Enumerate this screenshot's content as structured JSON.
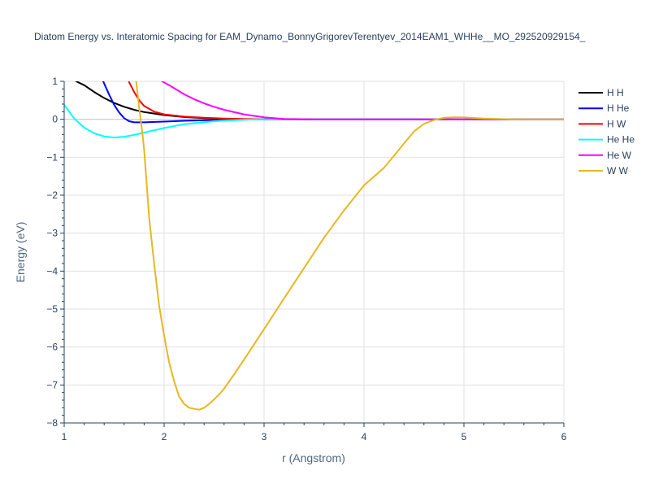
{
  "chart_data": {
    "type": "line",
    "title": "Diatom Energy vs. Interatomic Spacing for EAM_Dynamo_BonnyGrigorevTerentyev_2014EAM1_WHHe__MO_292520929154_",
    "xlabel": "r (Angstrom)",
    "ylabel": "Energy (eV)",
    "xlim": [
      1,
      6
    ],
    "ylim": [
      -8,
      1
    ],
    "xticks": [
      1,
      2,
      3,
      4,
      5,
      6
    ],
    "yticks": [
      1,
      0,
      -1,
      -2,
      -3,
      -4,
      -5,
      -6,
      -7,
      -8
    ],
    "grid": true,
    "legend_position": "right",
    "series": [
      {
        "name": "H H",
        "color": "#000000",
        "x": [
          1.12,
          1.2,
          1.3,
          1.4,
          1.5,
          1.6,
          1.7,
          1.8,
          2.0,
          2.2,
          2.4,
          2.6,
          2.8,
          3.0,
          4.0,
          6.0
        ],
        "y": [
          1.0,
          0.9,
          0.72,
          0.56,
          0.43,
          0.33,
          0.25,
          0.19,
          0.11,
          0.06,
          0.03,
          0.01,
          0.0,
          0.0,
          0.0,
          0.0
        ]
      },
      {
        "name": "H He",
        "color": "#0000ff",
        "x": [
          1.39,
          1.45,
          1.5,
          1.55,
          1.6,
          1.65,
          1.7,
          1.8,
          2.0,
          2.2,
          2.5,
          2.8,
          3.0,
          4.0,
          6.0
        ],
        "y": [
          1.0,
          0.65,
          0.38,
          0.18,
          0.03,
          -0.05,
          -0.08,
          -0.08,
          -0.06,
          -0.04,
          -0.02,
          -0.01,
          0.0,
          0.0,
          0.0
        ]
      },
      {
        "name": "H W",
        "color": "#ff0000",
        "x": [
          1.65,
          1.7,
          1.75,
          1.8,
          1.9,
          2.0,
          2.2,
          2.4,
          2.6,
          2.8,
          3.0,
          4.0,
          6.0
        ],
        "y": [
          0.98,
          0.72,
          0.5,
          0.35,
          0.2,
          0.13,
          0.07,
          0.04,
          0.02,
          0.01,
          0.0,
          0.0,
          0.0
        ]
      },
      {
        "name": "He He",
        "color": "#00ffff",
        "x": [
          1.0,
          1.1,
          1.2,
          1.3,
          1.4,
          1.5,
          1.6,
          1.7,
          1.8,
          2.0,
          2.2,
          2.5,
          2.8,
          3.0,
          4.0,
          6.0
        ],
        "y": [
          0.38,
          0.02,
          -0.22,
          -0.37,
          -0.45,
          -0.48,
          -0.46,
          -0.41,
          -0.35,
          -0.23,
          -0.13,
          -0.05,
          -0.01,
          0.0,
          0.0,
          0.0
        ]
      },
      {
        "name": "He W",
        "color": "#ff00ff",
        "x": [
          1.98,
          2.05,
          2.1,
          2.2,
          2.3,
          2.4,
          2.5,
          2.6,
          2.8,
          3.0,
          3.2,
          3.5,
          4.0,
          6.0
        ],
        "y": [
          1.0,
          0.9,
          0.82,
          0.66,
          0.53,
          0.42,
          0.33,
          0.25,
          0.13,
          0.05,
          0.01,
          0.0,
          0.0,
          0.0
        ]
      },
      {
        "name": "W W",
        "color": "#e6b822",
        "x": [
          1.72,
          1.75,
          1.78,
          1.8,
          1.85,
          1.9,
          1.95,
          2.0,
          2.05,
          2.1,
          2.15,
          2.2,
          2.25,
          2.3,
          2.35,
          2.4,
          2.45,
          2.5,
          2.55,
          2.6,
          2.7,
          2.8,
          2.9,
          3.0,
          3.2,
          3.4,
          3.6,
          3.8,
          4.0,
          4.2,
          4.3,
          4.4,
          4.5,
          4.6,
          4.7,
          4.8,
          4.9,
          5.0,
          5.2,
          5.5,
          6.0
        ],
        "y": [
          1.0,
          0.3,
          -0.3,
          -0.8,
          -2.6,
          -3.8,
          -4.9,
          -5.7,
          -6.4,
          -6.9,
          -7.3,
          -7.5,
          -7.6,
          -7.63,
          -7.65,
          -7.6,
          -7.5,
          -7.38,
          -7.25,
          -7.1,
          -6.72,
          -6.33,
          -5.93,
          -5.53,
          -4.72,
          -3.92,
          -3.12,
          -2.4,
          -1.74,
          -1.28,
          -0.96,
          -0.64,
          -0.32,
          -0.12,
          -0.02,
          0.04,
          0.05,
          0.05,
          0.02,
          0.0,
          0.0
        ]
      }
    ]
  }
}
